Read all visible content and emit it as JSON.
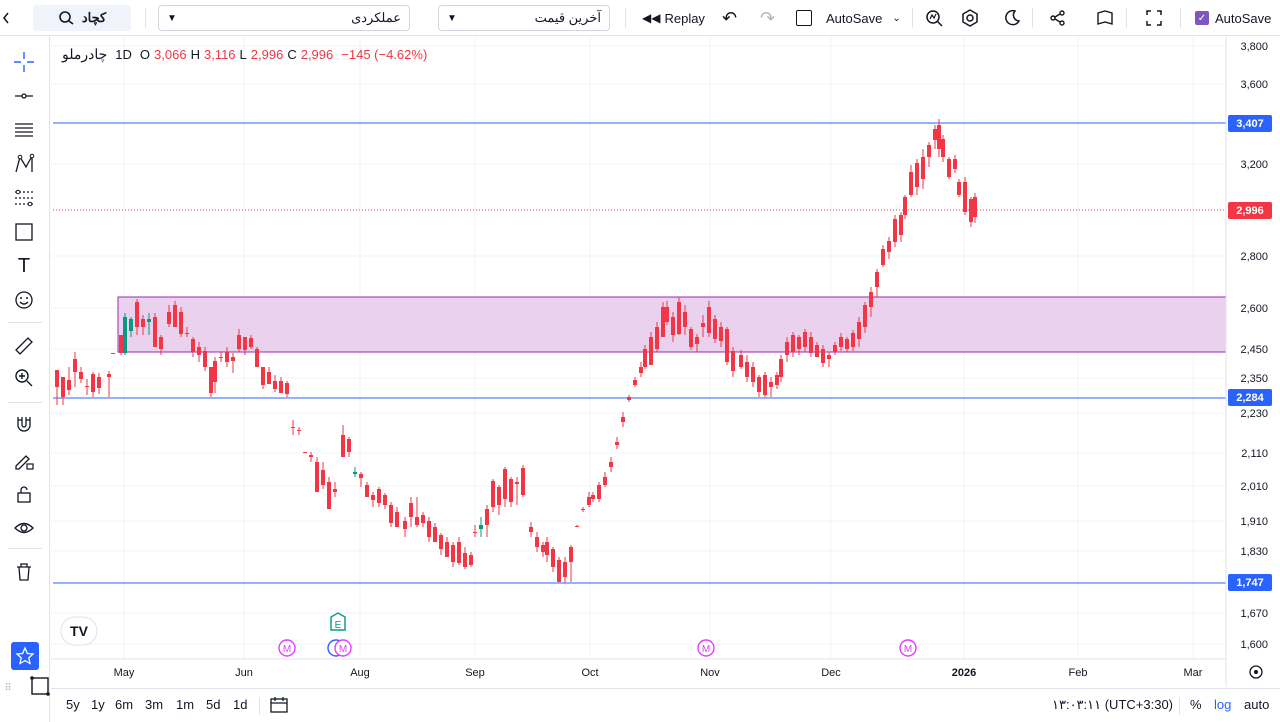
{
  "topbar": {
    "search_label": "کچاد",
    "interval_value": "عملکردی",
    "price_type_value": "آخرین قیمت",
    "replay_label": "Replay",
    "autosave_label": "AutoSave",
    "autosave_right_label": "AutoSave"
  },
  "legend": {
    "symbol": "چادرملو",
    "interval": "1D",
    "o_label": "O",
    "o_value": "3,066",
    "h_label": "H",
    "h_value": "3,116",
    "l_label": "L",
    "l_value": "2,996",
    "c_label": "C",
    "c_value": "2,996",
    "change": "−145 (−4.62%)"
  },
  "axis": {
    "price_ticks": [
      "3,800",
      "3,600",
      "3,200",
      "2,800",
      "2,600",
      "2,450",
      "2,350",
      "2,230",
      "2,110",
      "2,010",
      "1,910",
      "1,830",
      "1,670",
      "1,600"
    ],
    "time_ticks": [
      "May",
      "Jun",
      "Aug",
      "Sep",
      "Oct",
      "Nov",
      "Dec",
      "2026",
      "Feb",
      "Mar"
    ]
  },
  "levels": {
    "resistance": "3,407",
    "current": "2,996",
    "support_mid": "2,284",
    "support_low": "1,747"
  },
  "markers": {
    "earnings": "E",
    "meeting": "M"
  },
  "bottombar": {
    "ranges": [
      "5y",
      "1y",
      "6m",
      "3m",
      "1m",
      "5d",
      "1d"
    ],
    "time": "۱۳:۰۳:۱۱ (UTC+3:30)",
    "percent": "%",
    "log": "log",
    "auto": "auto"
  },
  "colors": {
    "up": "#089981",
    "down": "#f23645",
    "level": "#2962ff",
    "zone": "#e1bee7",
    "accent": "#2962ff"
  }
}
